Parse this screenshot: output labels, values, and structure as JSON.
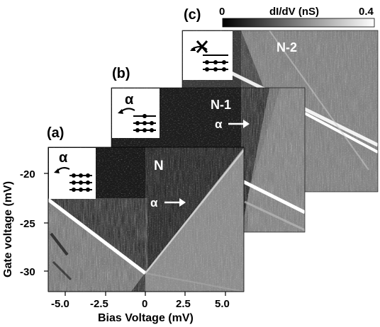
{
  "panels": [
    {
      "id": "c",
      "label": "(c)",
      "charge_state": "N-2",
      "alpha": ""
    },
    {
      "id": "b",
      "label": "(b)",
      "charge_state": "N-1",
      "alpha": "α"
    },
    {
      "id": "a",
      "label": "(a)",
      "charge_state": "N",
      "alpha": "α"
    }
  ],
  "colorbar": {
    "min": "0",
    "max": "0.4",
    "label": "dI/dV (nS)"
  },
  "axes": {
    "xlabel": "Bias Voltage (mV)",
    "ylabel": "Gate voltage (mV)",
    "xticks": [
      "-5.0",
      "-2.5",
      "0",
      "2.5",
      "5.0"
    ],
    "yticks": [
      "-20",
      "-25",
      "-30"
    ]
  },
  "inset_alpha_symbol": "α"
}
